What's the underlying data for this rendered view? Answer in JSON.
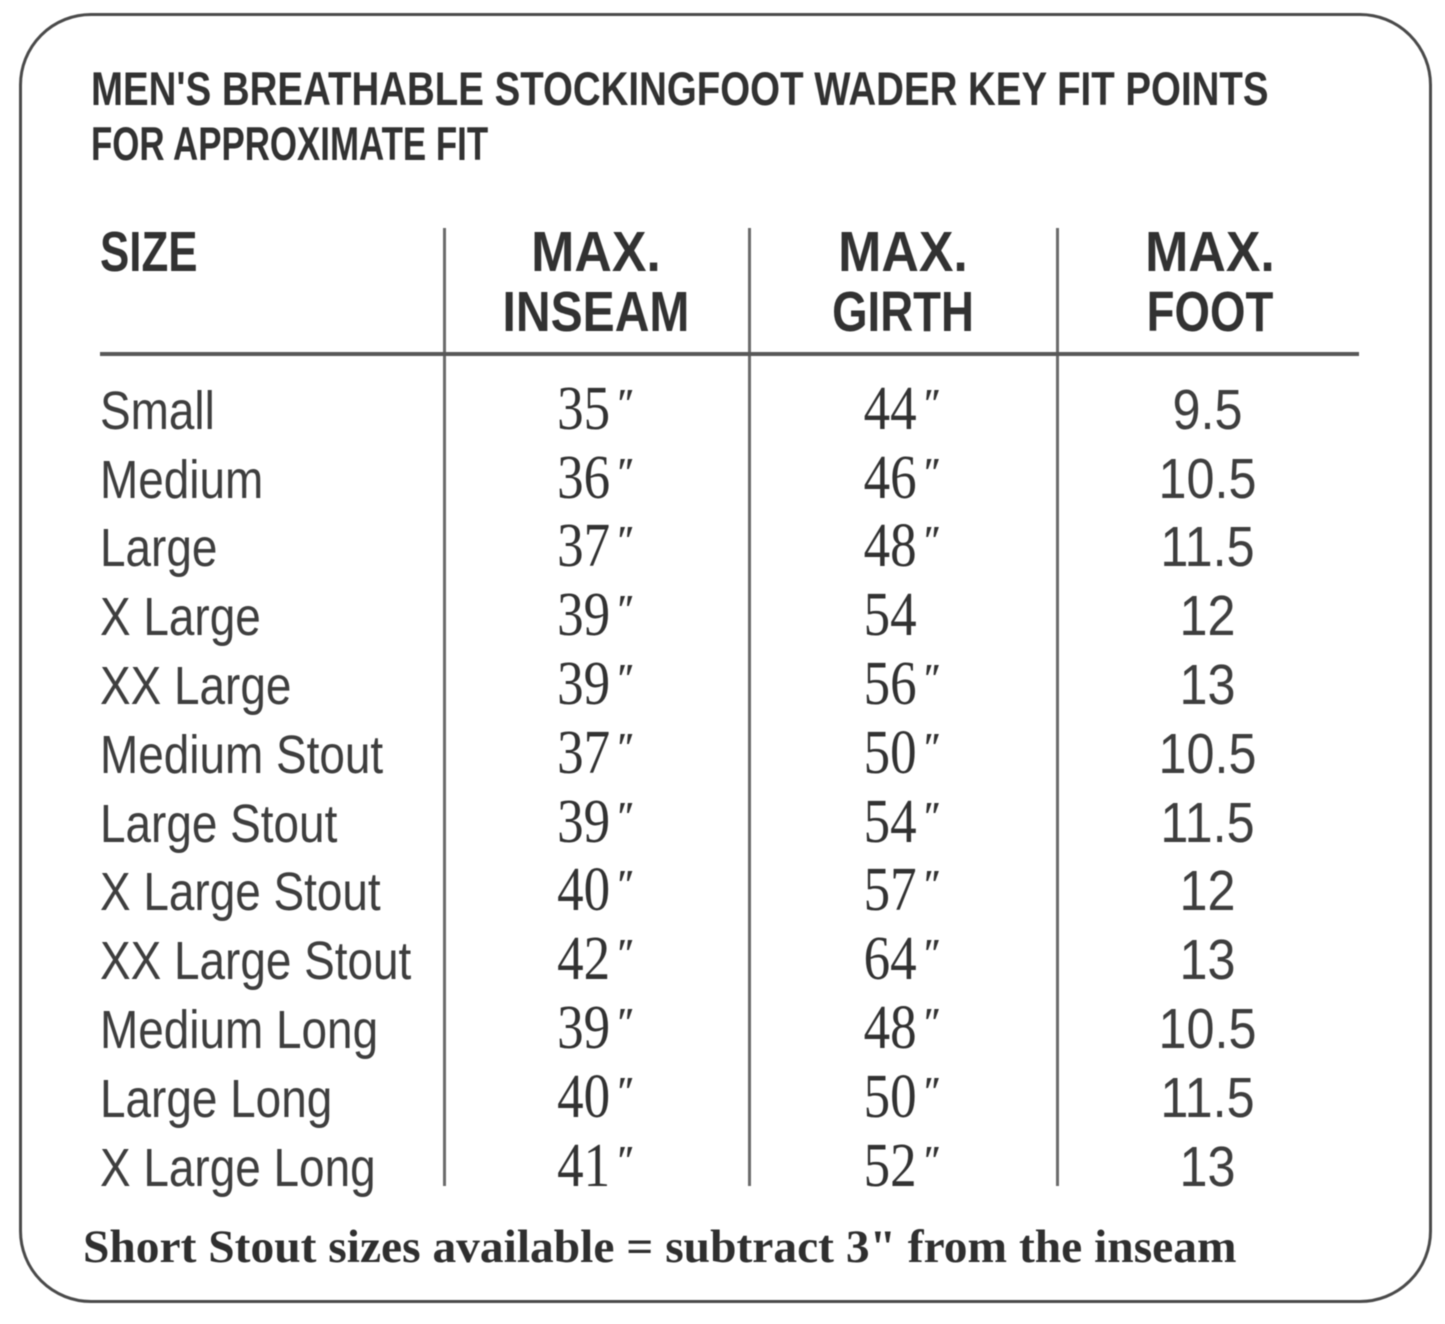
{
  "title": {
    "line1": "MEN'S BREATHABLE STOCKINGFOOT WADER KEY FIT POINTS",
    "line2": "FOR APPROXIMATE FIT"
  },
  "table": {
    "headers": [
      {
        "line1": "SIZE",
        "line2": ""
      },
      {
        "line1": "MAX.",
        "line2": "INSEAM"
      },
      {
        "line1": "MAX.",
        "line2": "GIRTH"
      },
      {
        "line1": "MAX.",
        "line2": "FOOT"
      }
    ],
    "rows": [
      {
        "size": "Small",
        "inseam": "35",
        "inseam_unit": "″",
        "girth": "44",
        "girth_unit": "″",
        "foot": "9.5"
      },
      {
        "size": "Medium",
        "inseam": "36",
        "inseam_unit": "″",
        "girth": "46",
        "girth_unit": "″",
        "foot": "10.5"
      },
      {
        "size": "Large",
        "inseam": "37",
        "inseam_unit": "″",
        "girth": "48",
        "girth_unit": "″",
        "foot": "11.5"
      },
      {
        "size": "X Large",
        "inseam": "39",
        "inseam_unit": "″",
        "girth": "54",
        "girth_unit": "",
        "foot": "12"
      },
      {
        "size": "XX Large",
        "inseam": "39",
        "inseam_unit": "″",
        "girth": "56",
        "girth_unit": "″",
        "foot": "13"
      },
      {
        "size": "Medium Stout",
        "inseam": "37",
        "inseam_unit": "″",
        "girth": "50",
        "girth_unit": "″",
        "foot": "10.5"
      },
      {
        "size": "Large Stout",
        "inseam": "39",
        "inseam_unit": "″",
        "girth": "54",
        "girth_unit": "″",
        "foot": "11.5"
      },
      {
        "size": "X Large Stout",
        "inseam": "40",
        "inseam_unit": "″",
        "girth": "57",
        "girth_unit": "″",
        "foot": "12"
      },
      {
        "size": "XX Large Stout",
        "inseam": "42",
        "inseam_unit": "″",
        "girth": "64",
        "girth_unit": "″",
        "foot": "13"
      },
      {
        "size": "Medium Long",
        "inseam": "39",
        "inseam_unit": "″",
        "girth": "48",
        "girth_unit": "″",
        "foot": "10.5"
      },
      {
        "size": "Large Long",
        "inseam": "40",
        "inseam_unit": "″",
        "girth": "50",
        "girth_unit": "″",
        "foot": "11.5"
      },
      {
        "size": "X Large Long",
        "inseam": "41",
        "inseam_unit": "″",
        "girth": "52",
        "girth_unit": "″",
        "foot": "13"
      }
    ]
  },
  "footnote": "Short Stout sizes available = subtract 3\" from the inseam",
  "colors": {
    "text": "#3a3a3a",
    "lines": "#6b6b6b",
    "border": "#4a4a4a",
    "background": "#ffffff"
  }
}
